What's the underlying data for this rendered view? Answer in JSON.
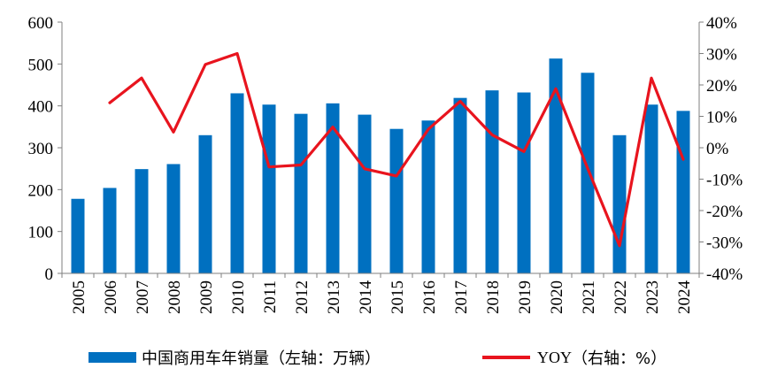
{
  "chart_data": {
    "type": "bar+line",
    "categories": [
      "2005",
      "2006",
      "2007",
      "2008",
      "2009",
      "2010",
      "2011",
      "2012",
      "2013",
      "2014",
      "2015",
      "2016",
      "2017",
      "2018",
      "2019",
      "2020",
      "2021",
      "2022",
      "2023",
      "2024"
    ],
    "series": [
      {
        "name": "中国商用车年销量（左轴：万辆）",
        "type": "bar",
        "axis": "left",
        "values": [
          178,
          204,
          249,
          261,
          330,
          430,
          403,
          381,
          406,
          379,
          345,
          365,
          419,
          437,
          432,
          513,
          479,
          330,
          403,
          388
        ]
      },
      {
        "name": "YOY（右轴：%）",
        "type": "line",
        "axis": "right",
        "values": [
          null,
          14.3,
          22.2,
          5.0,
          26.5,
          30.0,
          -6.1,
          -5.5,
          6.6,
          -6.7,
          -9.0,
          5.9,
          14.8,
          4.1,
          -1.2,
          18.8,
          -6.6,
          -31.2,
          22.2,
          -3.7
        ]
      }
    ],
    "y_left": {
      "ylim": [
        0,
        600
      ],
      "ticks": [
        0,
        100,
        200,
        300,
        400,
        500,
        600
      ]
    },
    "y_right": {
      "ylim": [
        -40,
        40
      ],
      "ticks": [
        "-40%",
        "-30%",
        "-20%",
        "-10%",
        "0%",
        "10%",
        "20%",
        "30%",
        "40%"
      ]
    },
    "grid": false,
    "legend_position": "bottom",
    "colors": {
      "bar": "#0070C0",
      "line": "#E8141E"
    }
  },
  "legend": {
    "bar_label": "中国商用车年销量（左轴：万辆）",
    "line_label_a": "YOY",
    "line_label_b": "（右轴：%）"
  }
}
